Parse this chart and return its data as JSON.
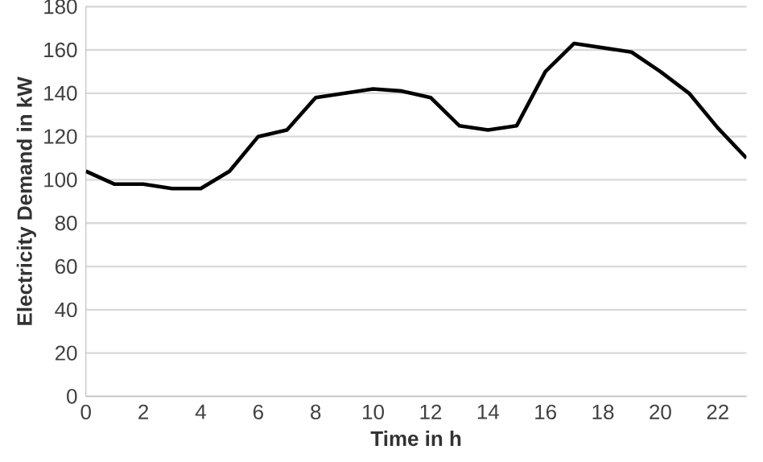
{
  "chart_data": {
    "type": "line",
    "xlabel": "Time in h",
    "ylabel": "Electricity Demand in kW",
    "x": [
      0,
      1,
      2,
      3,
      4,
      5,
      6,
      7,
      8,
      9,
      10,
      11,
      12,
      13,
      14,
      15,
      16,
      17,
      18,
      19,
      20,
      21,
      22,
      23
    ],
    "series": [
      {
        "color": "#000000",
        "values": [
          104,
          98,
          98,
          96,
          96,
          104,
          120,
          123,
          138,
          140,
          142,
          141,
          138,
          125,
          123,
          125,
          150,
          163,
          161,
          159,
          150,
          140,
          124,
          110
        ]
      }
    ],
    "xlim": [
      0,
      23
    ],
    "xticks": [
      0,
      2,
      4,
      6,
      8,
      10,
      12,
      14,
      16,
      18,
      20,
      22
    ],
    "ylim": [
      0,
      180
    ],
    "yticks": [
      0,
      20,
      40,
      60,
      80,
      100,
      120,
      140,
      160,
      180
    ],
    "grid": "y",
    "marker": "none",
    "line_style": "solid"
  }
}
